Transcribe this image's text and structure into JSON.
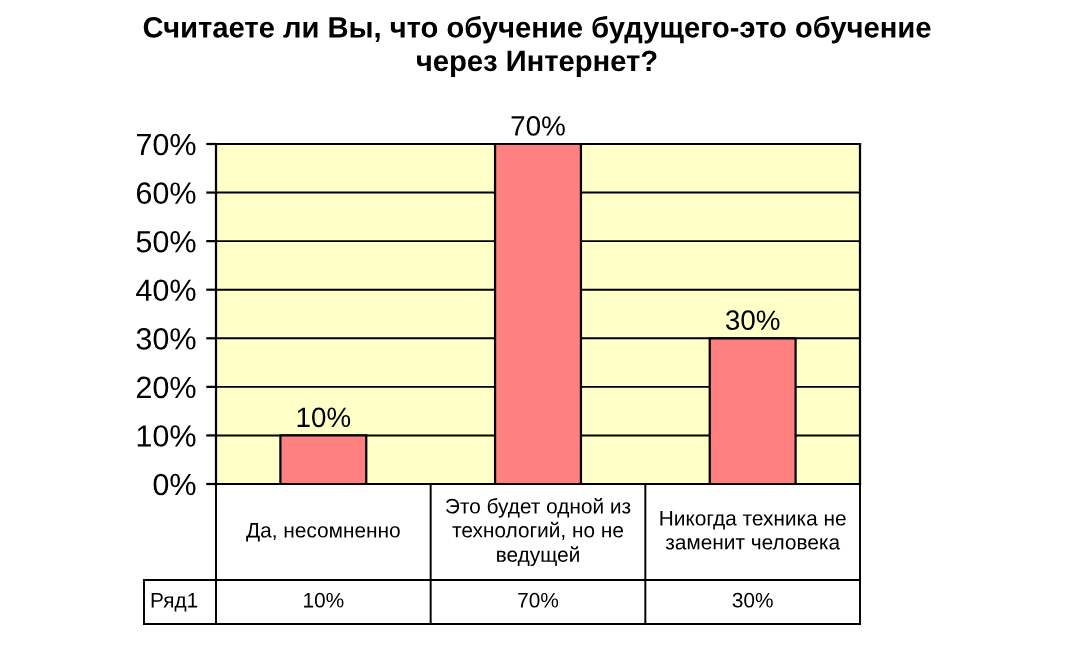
{
  "chart_data": {
    "type": "bar",
    "title": "Считаете ли Вы, что обучение будущего-это обучение через Интернет?",
    "categories": [
      "Да, несомненно",
      "Это будет одной из технологий, но не ведущей",
      "Никогда техника не заменит человека"
    ],
    "series": [
      {
        "name": "Ряд1",
        "color": "#ff8080",
        "values": [
          10,
          70,
          30
        ],
        "value_labels": [
          "10%",
          "70%",
          "30%"
        ]
      }
    ],
    "ylim": [
      0,
      70
    ],
    "yticks": [
      {
        "value": 0,
        "label": "0%"
      },
      {
        "value": 10,
        "label": "10%"
      },
      {
        "value": 20,
        "label": "20%"
      },
      {
        "value": 30,
        "label": "30%"
      },
      {
        "value": 40,
        "label": "40%"
      },
      {
        "value": 50,
        "label": "50%"
      },
      {
        "value": 60,
        "label": "60%"
      },
      {
        "value": 70,
        "label": "70%"
      }
    ],
    "grid": "y",
    "legend": "bottom"
  }
}
